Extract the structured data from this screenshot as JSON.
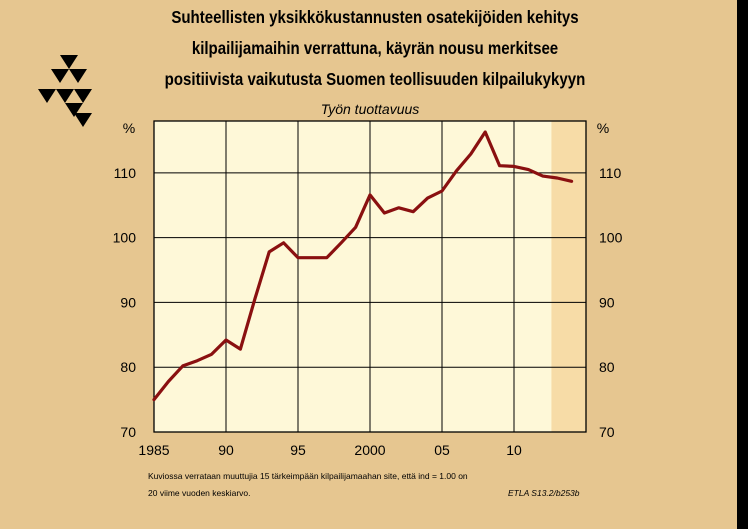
{
  "title_lines": [
    "Suhteellisten yksikkökustannusten osatekijöiden kehitys",
    "kilpailijamaihin verrattuna, käyrän nousu merkitsee",
    "positiivista vaikutusta Suomen teollisuuden kilpailukykyyn"
  ],
  "subtitle": "Työn tuottavuus",
  "notes": [
    "Kuviossa verrataan muuttujia 15 tärkeimpään kilpailijamaahan site, että ind = 1.00 on",
    "20 viime vuoden keskiarvo."
  ],
  "source": "ETLA S13.2/b253b",
  "logo": "ETLA triangle logo",
  "colors": {
    "background": "#e6c690",
    "plot_area": "#fef8d8",
    "forecast_shade": "#f7dca7",
    "line": "#8a1010",
    "grid": "#000000"
  },
  "chart_data": {
    "type": "line",
    "title": "Työn tuottavuus",
    "xlim": [
      1985,
      2015
    ],
    "ylim": [
      70,
      118
    ],
    "y_unit_label": "%",
    "x_tick_labels": [
      {
        "x": 1985,
        "label": "1985"
      },
      {
        "x": 1990,
        "label": "90"
      },
      {
        "x": 1995,
        "label": "95"
      },
      {
        "x": 2000,
        "label": "2000"
      },
      {
        "x": 2005,
        "label": "05"
      },
      {
        "x": 2010,
        "label": "10"
      }
    ],
    "x_gridlines": [
      1990,
      1995,
      2000,
      2005,
      2010
    ],
    "y_ticks": [
      70,
      80,
      90,
      100,
      110
    ],
    "y_gridlines": [
      80,
      90,
      100,
      110
    ],
    "forecast_from": 2012.6,
    "grid": true,
    "series": [
      {
        "x": [
          1985,
          1986,
          1987,
          1988,
          1989,
          1990,
          1991,
          1992,
          1993,
          1994,
          1995,
          1996,
          1997,
          1998,
          1999,
          2000,
          2001,
          2002,
          2003,
          2004,
          2005,
          2006,
          2007,
          2008,
          2009,
          2010,
          2011,
          2012,
          2013,
          2014
        ],
        "y": [
          75.0,
          77.8,
          80.2,
          81.0,
          82.0,
          84.2,
          82.8,
          90.5,
          97.8,
          99.2,
          96.9,
          96.9,
          96.9,
          99.2,
          101.6,
          106.6,
          103.8,
          104.6,
          104.0,
          106.1,
          107.2,
          110.3,
          112.9,
          116.3,
          111.1,
          111.0,
          110.5,
          109.5,
          109.2,
          108.7
        ]
      }
    ]
  }
}
